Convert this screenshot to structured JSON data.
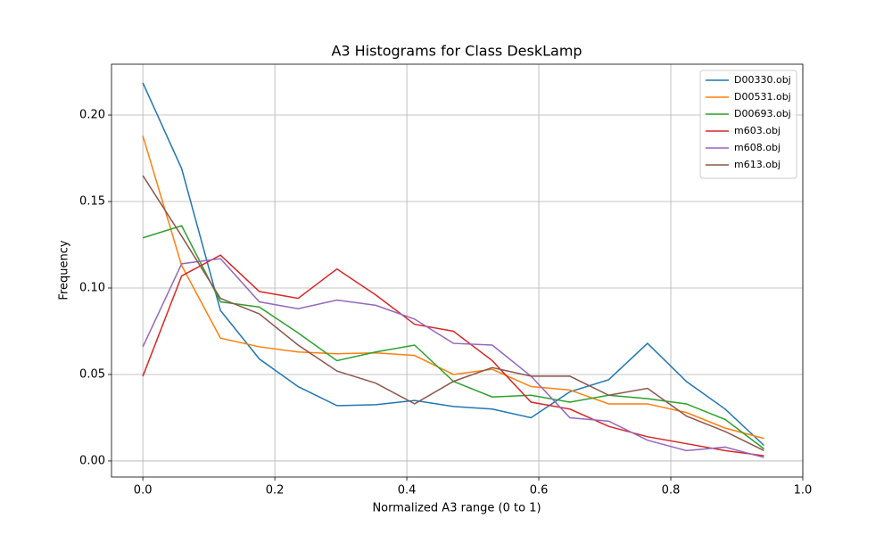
{
  "chart_data": {
    "type": "line",
    "title": "A3 Histograms for Class DeskLamp",
    "xlabel": "Normalized A3 range (0 to 1)",
    "ylabel": "Frequency",
    "x": [
      0,
      0.0588,
      0.1176,
      0.1765,
      0.2353,
      0.2941,
      0.3529,
      0.4118,
      0.4706,
      0.5294,
      0.5882,
      0.6471,
      0.7059,
      0.7647,
      0.8235,
      0.8824,
      0.9412
    ],
    "series": [
      {
        "name": "D00330.obj",
        "color": "#1f77b4",
        "values": [
          0.2186,
          0.169,
          0.087,
          0.059,
          0.043,
          0.032,
          0.0325,
          0.035,
          0.0315,
          0.03,
          0.025,
          0.04,
          0.047,
          0.068,
          0.046,
          0.03,
          0.009
        ]
      },
      {
        "name": "D00531.obj",
        "color": "#ff7f0e",
        "values": [
          0.188,
          0.113,
          0.071,
          0.066,
          0.063,
          0.062,
          0.0625,
          0.061,
          0.05,
          0.053,
          0.043,
          0.041,
          0.033,
          0.033,
          0.028,
          0.019,
          0.013
        ]
      },
      {
        "name": "D00693.obj",
        "color": "#2ca02c",
        "values": [
          0.129,
          0.136,
          0.092,
          0.089,
          0.074,
          0.058,
          0.063,
          0.067,
          0.046,
          0.037,
          0.038,
          0.034,
          0.038,
          0.036,
          0.033,
          0.024,
          0.007
        ]
      },
      {
        "name": "m603.obj",
        "color": "#d62728",
        "values": [
          0.049,
          0.107,
          0.119,
          0.098,
          0.094,
          0.111,
          0.096,
          0.079,
          0.075,
          0.058,
          0.034,
          0.03,
          0.02,
          0.014,
          0.01,
          0.006,
          0.003
        ]
      },
      {
        "name": "m608.obj",
        "color": "#9467bd",
        "values": [
          0.066,
          0.114,
          0.117,
          0.092,
          0.088,
          0.093,
          0.09,
          0.082,
          0.068,
          0.067,
          0.049,
          0.025,
          0.023,
          0.012,
          0.006,
          0.008,
          0.002
        ]
      },
      {
        "name": "m613.obj",
        "color": "#8c564b",
        "values": [
          0.165,
          0.13,
          0.094,
          0.085,
          0.067,
          0.052,
          0.045,
          0.033,
          0.046,
          0.054,
          0.049,
          0.049,
          0.038,
          0.042,
          0.026,
          0.017,
          0.006
        ]
      }
    ],
    "xlim": [
      -0.0475,
      1.0
    ],
    "xticks": [
      {
        "value": 0,
        "label": "0.0"
      },
      {
        "value": 0.2,
        "label": "0.2"
      },
      {
        "value": 0.4,
        "label": "0.4"
      },
      {
        "value": 0.6,
        "label": "0.6"
      },
      {
        "value": 0.8,
        "label": "0.8"
      },
      {
        "value": 1.0,
        "label": "1.0"
      }
    ],
    "ylim": [
      -0.0093,
      0.2294
    ],
    "yticks": [
      {
        "value": 0,
        "label": "0.00"
      },
      {
        "value": 0.05,
        "label": "0.05"
      },
      {
        "value": 0.1,
        "label": "0.10"
      },
      {
        "value": 0.15,
        "label": "0.15"
      },
      {
        "value": 0.2,
        "label": "0.20"
      }
    ],
    "grid": true,
    "legend": "upper right"
  }
}
